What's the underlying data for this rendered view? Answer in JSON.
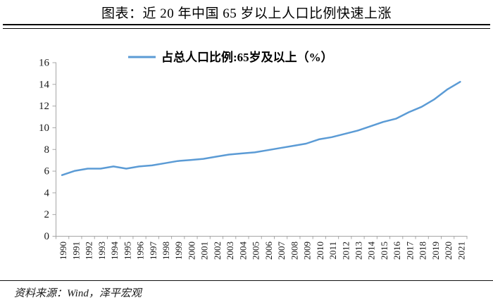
{
  "header": {
    "title": "图表：近 20 年中国 65 岁以上人口比例快速上涨"
  },
  "footer": {
    "source": "资料来源：Wind，泽平宏观"
  },
  "chart_data": {
    "type": "line",
    "title": "图表：近 20 年中国 65 岁以上人口比例快速上涨",
    "legend_position": "top-center",
    "grid": false,
    "axis_color": "#A6A6A6",
    "ylim": [
      0,
      16
    ],
    "ytick_step": 2,
    "x": [
      "1990",
      "1991",
      "1992",
      "1993",
      "1994",
      "1995",
      "1996",
      "1997",
      "1998",
      "1999",
      "2000",
      "2001",
      "2002",
      "2003",
      "2004",
      "2005",
      "2006",
      "2007",
      "2008",
      "2009",
      "2010",
      "2011",
      "2012",
      "2013",
      "2014",
      "2015",
      "2016",
      "2017",
      "2018",
      "2019",
      "2020",
      "2021"
    ],
    "series": [
      {
        "name": "占总人口比例:65岁及以上（%）",
        "color": "#5B9BD5",
        "values": [
          5.6,
          6.0,
          6.2,
          6.2,
          6.4,
          6.2,
          6.4,
          6.5,
          6.7,
          6.9,
          7.0,
          7.1,
          7.3,
          7.5,
          7.6,
          7.7,
          7.9,
          8.1,
          8.3,
          8.5,
          8.9,
          9.1,
          9.4,
          9.7,
          10.1,
          10.5,
          10.8,
          11.4,
          11.9,
          12.6,
          13.5,
          14.2
        ]
      }
    ]
  }
}
